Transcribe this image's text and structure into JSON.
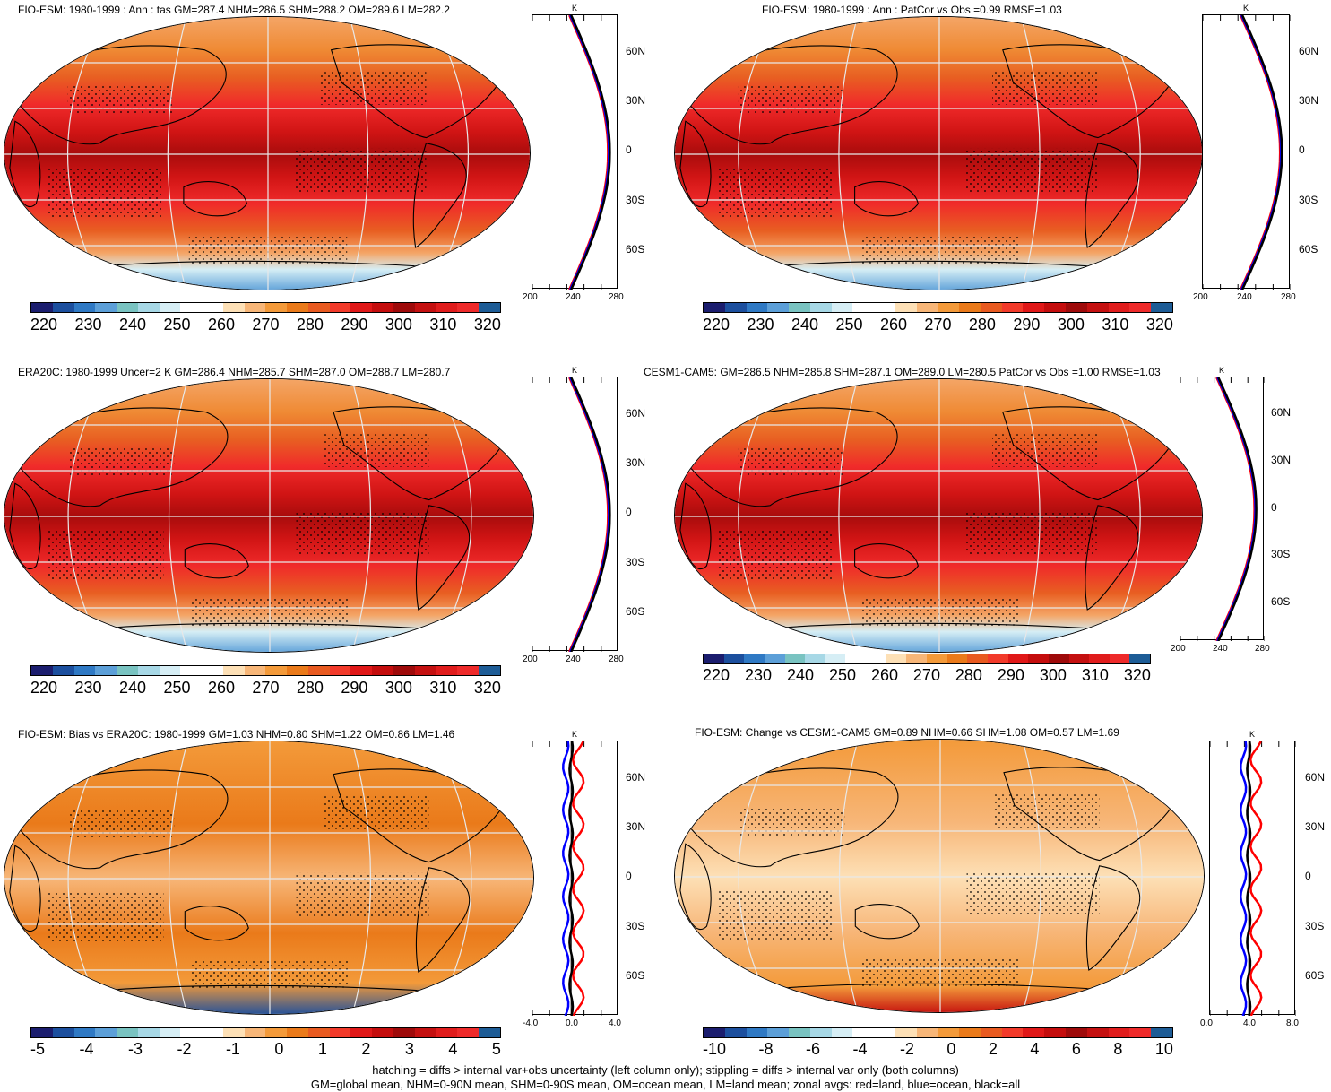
{
  "panels": [
    {
      "title": "FIO-ESM: 1980-1999 : Ann : tas GM=287.4 NHM=286.5 SHM=288.2 OM=289.6 LM=282.2",
      "colorbar_labels": [
        "220",
        "230",
        "240",
        "250",
        "260",
        "270",
        "280",
        "290",
        "300",
        "310",
        "320"
      ],
      "zonal_x_labels": [
        "200",
        "240",
        "280"
      ],
      "zonal_unit": "K",
      "zonal_lat_labels": [
        "60N",
        "30N",
        "0",
        "30S",
        "60S"
      ],
      "style": "abs"
    },
    {
      "title": "FIO-ESM: 1980-1999 : Ann : PatCor vs Obs =0.99 RMSE=1.03",
      "colorbar_labels": [
        "220",
        "230",
        "240",
        "250",
        "260",
        "270",
        "280",
        "290",
        "300",
        "310",
        "320"
      ],
      "zonal_x_labels": [
        "200",
        "240",
        "280"
      ],
      "zonal_unit": "K",
      "zonal_lat_labels": [
        "60N",
        "30N",
        "0",
        "30S",
        "60S"
      ],
      "style": "abs"
    },
    {
      "title": "ERA20C: 1980-1999 Uncer=2 K GM=286.4 NHM=285.7 SHM=287.0 OM=288.7 LM=280.7",
      "colorbar_labels": [
        "220",
        "230",
        "240",
        "250",
        "260",
        "270",
        "280",
        "290",
        "300",
        "310",
        "320"
      ],
      "zonal_x_labels": [
        "200",
        "240",
        "280"
      ],
      "zonal_unit": "K",
      "zonal_lat_labels": [
        "60N",
        "30N",
        "0",
        "30S",
        "60S"
      ],
      "style": "abs"
    },
    {
      "title": "CESM1-CAM5: GM=286.5 NHM=285.8 SHM=287.1 OM=289.0 LM=280.5 PatCor vs Obs =1.00 RMSE=1.03",
      "colorbar_labels": [
        "220",
        "230",
        "240",
        "250",
        "260",
        "270",
        "280",
        "290",
        "300",
        "310",
        "320"
      ],
      "zonal_x_labels": [
        "200",
        "240",
        "280"
      ],
      "zonal_unit": "K",
      "zonal_lat_labels": [
        "60N",
        "30N",
        "0",
        "30S",
        "60S"
      ],
      "style": "abs"
    },
    {
      "title": "FIO-ESM: Bias vs ERA20C: 1980-1999 GM=1.03 NHM=0.80 SHM=1.22 OM=0.86 LM=1.46",
      "colorbar_labels": [
        "-5",
        "-4",
        "-3",
        "-2",
        "-1",
        "0",
        "1",
        "2",
        "3",
        "4",
        "5"
      ],
      "zonal_x_labels": [
        "-4.0",
        "0.0",
        "4.0"
      ],
      "zonal_unit": "K",
      "zonal_lat_labels": [
        "60N",
        "30N",
        "0",
        "30S",
        "60S"
      ],
      "style": "bias"
    },
    {
      "title": "FIO-ESM: Change vs CESM1-CAM5 GM=0.89 NHM=0.66 SHM=1.08 OM=0.57 LM=1.69",
      "colorbar_labels": [
        "-10",
        "-8",
        "-6",
        "-4",
        "-2",
        "0",
        "2",
        "4",
        "6",
        "8",
        "10"
      ],
      "zonal_x_labels": [
        "0.0",
        "4.0",
        "8.0"
      ],
      "zonal_unit": "K",
      "zonal_lat_labels": [
        "60N",
        "30N",
        "0",
        "30S",
        "60S"
      ],
      "style": "change"
    }
  ],
  "colors": {
    "colorbar": [
      "#1b1d6e",
      "#1c4f9e",
      "#2f79c4",
      "#6aa8dc",
      "#79c3c1",
      "#a7d8e6",
      "#d6eef5",
      "#ffffff",
      "#ffffff",
      "#fde0b6",
      "#f7b678",
      "#f39a3a",
      "#ea7a1a",
      "#e85a20",
      "#f23a2a",
      "#e01818",
      "#c40d0d",
      "#9e0a0a",
      "#d41818",
      "#e82020",
      "#ef2b2b",
      "#1d5c96"
    ],
    "land_line": "#000000",
    "zonal_land": "#ff0000",
    "zonal_ocean": "#0000ff",
    "zonal_all": "#000000"
  },
  "footer": {
    "line1": "hatching = diffs > internal var+obs uncertainty (left column only); stippling = diffs > internal var only (both columns)",
    "line2": "GM=global mean, NHM=0-90N mean, SHM=0-90S mean, OM=ocean mean, LM=land mean; zonal avgs: red=land, blue=ocean, black=all"
  }
}
